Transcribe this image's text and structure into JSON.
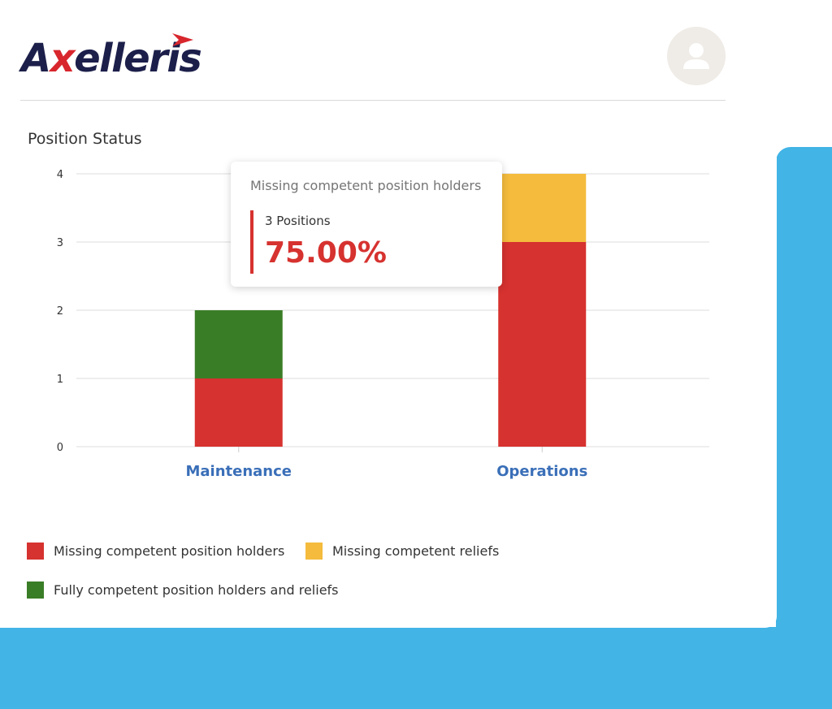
{
  "brand": {
    "logo_text": "Axelleris",
    "logo_color": "#1c1f4a",
    "accent_color": "#d8262d",
    "background_accent": "#42b4e6"
  },
  "header": {
    "avatar_icon": "user-icon"
  },
  "chart_data": {
    "type": "bar",
    "stacked": true,
    "title": "Position Status",
    "xlabel": "",
    "ylabel": "",
    "categories": [
      "Maintenance",
      "Operations"
    ],
    "series": [
      {
        "name": "Missing competent position holders",
        "color": "#d6322f",
        "values": [
          1,
          3
        ]
      },
      {
        "name": "Missing competent reliefs",
        "color": "#f4bb3c",
        "values": [
          0,
          1
        ]
      },
      {
        "name": "Fully competent position holders and reliefs",
        "color": "#3a7d27",
        "values": [
          1,
          0
        ]
      }
    ],
    "ylim": [
      0,
      4
    ],
    "yticks": [
      "0",
      "1",
      "2",
      "3",
      "4"
    ],
    "grid": true,
    "legend_position": "bottom",
    "tooltip": {
      "title": "Missing competent position holders",
      "count_label": "3 Positions",
      "percent": "75.00%",
      "color": "#d6322f"
    }
  }
}
